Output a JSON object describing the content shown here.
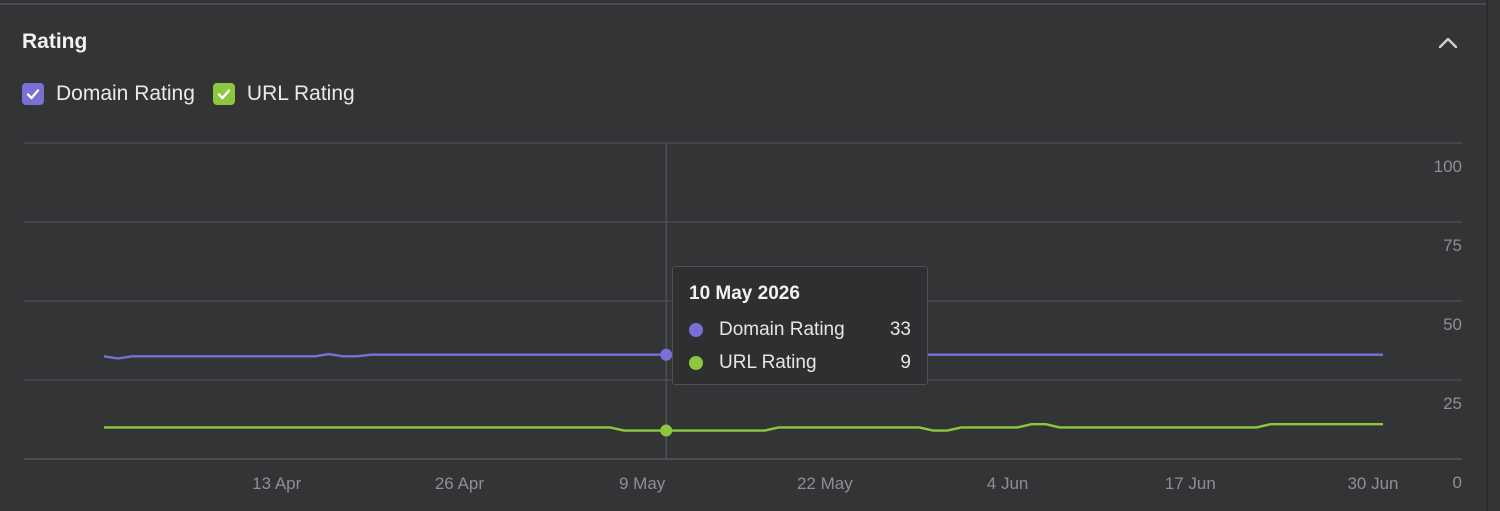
{
  "panel": {
    "title": "Rating",
    "collapse_icon": "chevron-up-icon"
  },
  "legend": [
    {
      "label": "Domain Rating",
      "checked": true,
      "color": "#7b6fd6"
    },
    {
      "label": "URL Rating",
      "checked": true,
      "color": "#8dc63f"
    }
  ],
  "tooltip": {
    "date": "10 May 2026",
    "rows": [
      {
        "name": "Domain Rating",
        "value": "33",
        "color": "#7b6fd6"
      },
      {
        "name": "URL Rating",
        "value": "9",
        "color": "#8dc63f"
      }
    ]
  },
  "chart_data": {
    "type": "line",
    "ylim": [
      0,
      100
    ],
    "yticks": [
      0,
      25,
      50,
      75,
      100
    ],
    "xlim": [
      "2026-03-31",
      "2026-06-30"
    ],
    "xticks": [
      {
        "date": "2026-04-13",
        "label": "13 Apr"
      },
      {
        "date": "2026-04-26",
        "label": "26 Apr"
      },
      {
        "date": "2026-05-09",
        "label": "9 May"
      },
      {
        "date": "2026-05-22",
        "label": "22 May"
      },
      {
        "date": "2026-06-04",
        "label": "4 Jun"
      },
      {
        "date": "2026-06-17",
        "label": "17 Jun"
      },
      {
        "date": "2026-06-30",
        "label": "30 Jun"
      }
    ],
    "hover_date": "2026-05-10",
    "series": [
      {
        "name": "Domain Rating",
        "color": "#7b6fd6",
        "points": [
          [
            "2026-03-31",
            32.5
          ],
          [
            "2026-04-01",
            31.8
          ],
          [
            "2026-04-02",
            32.5
          ],
          [
            "2026-04-15",
            32.5
          ],
          [
            "2026-04-16",
            33.2
          ],
          [
            "2026-04-17",
            32.5
          ],
          [
            "2026-04-18",
            32.5
          ],
          [
            "2026-04-19",
            33
          ],
          [
            "2026-06-30",
            33
          ]
        ]
      },
      {
        "name": "URL Rating",
        "color": "#8dc63f",
        "points": [
          [
            "2026-03-31",
            10
          ],
          [
            "2026-05-06",
            10
          ],
          [
            "2026-05-07",
            9
          ],
          [
            "2026-05-17",
            9
          ],
          [
            "2026-05-18",
            10
          ],
          [
            "2026-05-28",
            10
          ],
          [
            "2026-05-29",
            9
          ],
          [
            "2026-05-30",
            9
          ],
          [
            "2026-05-31",
            10
          ],
          [
            "2026-06-04",
            10
          ],
          [
            "2026-06-05",
            11
          ],
          [
            "2026-06-06",
            11
          ],
          [
            "2026-06-07",
            10
          ],
          [
            "2026-06-21",
            10
          ],
          [
            "2026-06-22",
            11
          ],
          [
            "2026-06-30",
            11
          ]
        ]
      }
    ]
  }
}
